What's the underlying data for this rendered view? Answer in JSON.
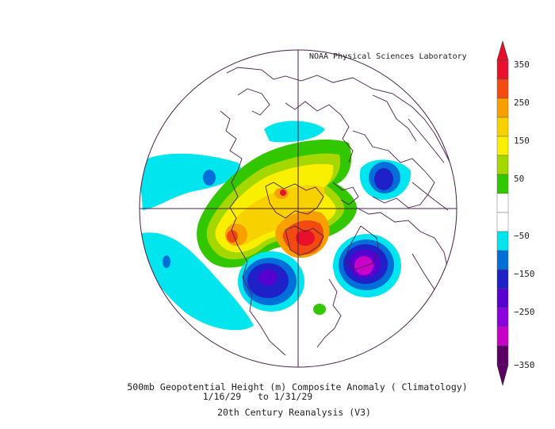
{
  "credit": "NOAA Physical Sciences Laboratory",
  "title": "500mb Geopotential Height (m) Composite Anomaly ( Climatology)",
  "date_range": "1/16/29   to 1/31/29",
  "subtitle": "20th Century Reanalysis (V3)",
  "colorbar": {
    "labels": [
      "350",
      "250",
      "150",
      "50",
      "−50",
      "−150",
      "−250",
      "−350"
    ],
    "colors": [
      "#e8102a",
      "#f24a10",
      "#f7a000",
      "#f8d200",
      "#f8f000",
      "#a5d700",
      "#33c700",
      "#ffffff",
      "#ffffff",
      "#00e5ee",
      "#0070d8",
      "#2020c8",
      "#5800d0",
      "#8c00e0",
      "#c800c8",
      "#5c0066"
    ]
  }
}
